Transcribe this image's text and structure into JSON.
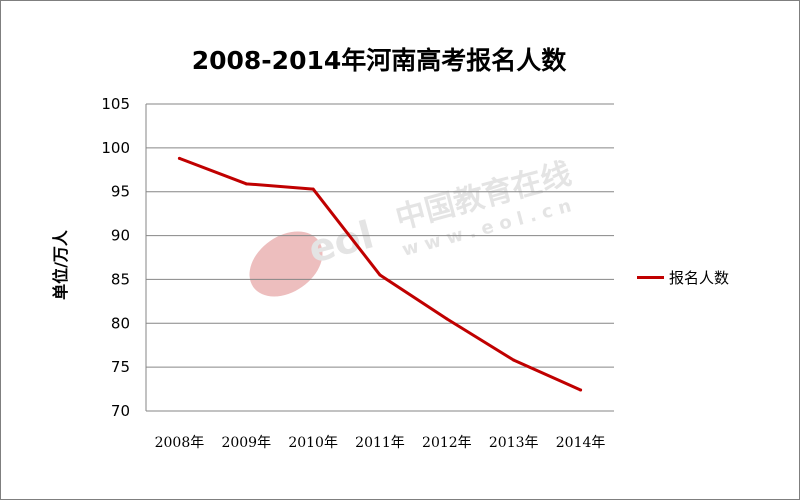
{
  "chart_data": {
    "type": "line",
    "title": "2008-2014年河南高考报名人数",
    "xlabel": "",
    "ylabel": "单位/万人",
    "categories": [
      "2008年",
      "2009年",
      "2010年",
      "2011年",
      "2012年",
      "2013年",
      "2014年"
    ],
    "series": [
      {
        "name": "报名人数",
        "values": [
          98.8,
          95.9,
          95.3,
          85.5,
          80.5,
          75.8,
          72.4
        ],
        "color": "#c00000"
      }
    ],
    "ylim": [
      70,
      105
    ],
    "yticks": [
      70,
      75,
      80,
      85,
      90,
      95,
      100,
      105
    ],
    "grid": true,
    "legend": "right"
  },
  "watermark": {
    "brand": "中国教育在线",
    "url": "w w w . e o l . c n",
    "logo_text": "eol"
  }
}
